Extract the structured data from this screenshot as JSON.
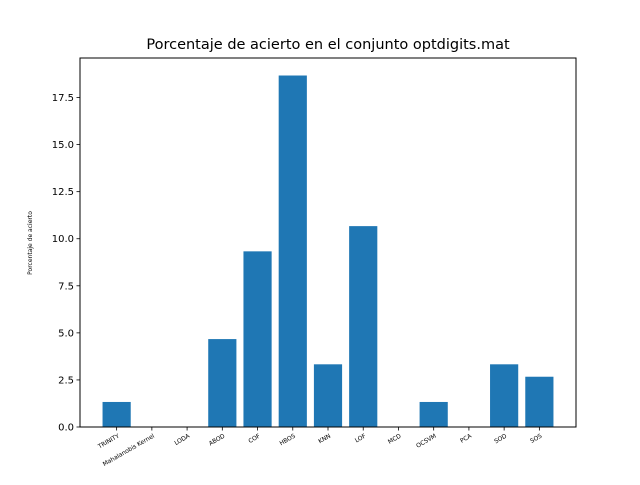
{
  "chart_data": {
    "type": "bar",
    "title": "Porcentaje de acierto en el conjunto optdigits.mat",
    "xlabel": "",
    "ylabel": "Porcentaje de acierto",
    "categories": [
      "TRINITY",
      "Mahalanobis Kernel",
      "LODA",
      "ABOD",
      "COF",
      "HBOS",
      "KNN",
      "LOF",
      "MCD",
      "OCSVM",
      "PCA",
      "SOD",
      "SOS"
    ],
    "values": [
      1.33,
      0.0,
      0.0,
      4.67,
      9.33,
      18.67,
      3.33,
      10.67,
      0.0,
      1.33,
      0.0,
      3.33,
      2.67
    ],
    "ylim": [
      0,
      19.6
    ],
    "yticks": [
      "0.0",
      "2.5",
      "5.0",
      "7.5",
      "10.0",
      "12.5",
      "15.0",
      "17.5"
    ],
    "ytick_values": [
      0,
      2.5,
      5,
      7.5,
      10,
      12.5,
      15,
      17.5
    ],
    "bar_color": "#1f77b4",
    "grid": false,
    "legend": "none"
  }
}
